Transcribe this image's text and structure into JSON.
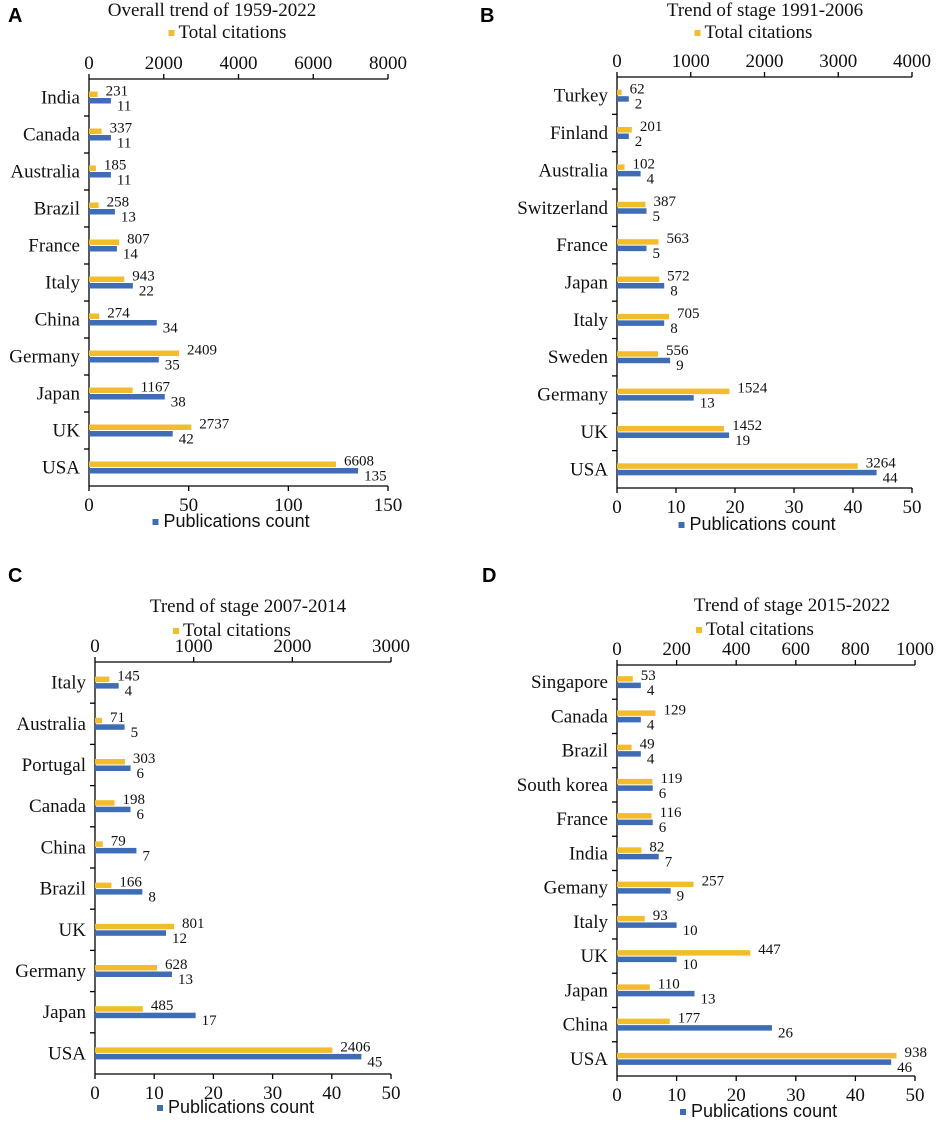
{
  "colors": {
    "citations": "#F2BC2D",
    "publications": "#3E6DB5"
  },
  "chart_data": [
    {
      "type": "bar",
      "panel": "A",
      "title": "Overall trend of 1959-2022",
      "orientation": "horizontal",
      "legend_top": "Total citations",
      "legend_bottom": "Publications count",
      "categories": [
        "India",
        "Canada",
        "Australia",
        "Brazil",
        "France",
        "Italy",
        "China",
        "Germany",
        "Japan",
        "UK",
        "USA"
      ],
      "top_axis": {
        "min": 0,
        "max": 8000,
        "ticks": [
          "0",
          "2000",
          "4000",
          "6000",
          "8000"
        ]
      },
      "bottom_axis": {
        "min": 0,
        "max": 150,
        "ticks": [
          "0",
          "50",
          "100",
          "150"
        ]
      },
      "series": [
        {
          "name": "Total citations",
          "axis": "top",
          "values": [
            231,
            337,
            185,
            258,
            807,
            943,
            274,
            2409,
            1167,
            2737,
            6608
          ]
        },
        {
          "name": "Publications count",
          "axis": "bottom",
          "values": [
            11,
            11,
            11,
            13,
            14,
            22,
            34,
            35,
            38,
            42,
            135
          ]
        }
      ]
    },
    {
      "type": "bar",
      "panel": "B",
      "title": "Trend of stage 1991-2006",
      "orientation": "horizontal",
      "legend_top": "Total citations",
      "legend_bottom": "Publications count",
      "categories": [
        "Turkey",
        "Finland",
        "Australia",
        "Switzerland",
        "France",
        "Japan",
        "Italy",
        "Sweden",
        "Germany",
        "UK",
        "USA"
      ],
      "top_axis": {
        "min": 0,
        "max": 4000,
        "ticks": [
          "0",
          "1000",
          "2000",
          "3000",
          "4000"
        ]
      },
      "bottom_axis": {
        "min": 0,
        "max": 50,
        "ticks": [
          "0",
          "10",
          "20",
          "30",
          "40",
          "50"
        ]
      },
      "series": [
        {
          "name": "Total citations",
          "axis": "top",
          "values": [
            62,
            201,
            102,
            387,
            563,
            572,
            705,
            556,
            1524,
            1452,
            3264
          ]
        },
        {
          "name": "Publications count",
          "axis": "bottom",
          "values": [
            2,
            2,
            4,
            5,
            5,
            8,
            8,
            9,
            13,
            19,
            44
          ]
        }
      ]
    },
    {
      "type": "bar",
      "panel": "C",
      "title": "Trend of stage 2007-2014",
      "orientation": "horizontal",
      "legend_top": "Total citations",
      "legend_bottom": "Publications count",
      "categories": [
        "Italy",
        "Australia",
        "Portugal",
        "Canada",
        "China",
        "Brazil",
        "UK",
        "Germany",
        "Japan",
        "USA"
      ],
      "top_axis": {
        "min": 0,
        "max": 3000,
        "ticks": [
          "0",
          "1000",
          "2000",
          "3000"
        ]
      },
      "bottom_axis": {
        "min": 0,
        "max": 50,
        "ticks": [
          "0",
          "10",
          "20",
          "30",
          "40",
          "50"
        ]
      },
      "series": [
        {
          "name": "Total citations",
          "axis": "top",
          "values": [
            145,
            71,
            303,
            198,
            79,
            166,
            801,
            628,
            485,
            2406
          ]
        },
        {
          "name": "Publications count",
          "axis": "bottom",
          "values": [
            4,
            5,
            6,
            6,
            7,
            8,
            12,
            13,
            17,
            45
          ]
        }
      ]
    },
    {
      "type": "bar",
      "panel": "D",
      "title": "Trend of stage 2015-2022",
      "orientation": "horizontal",
      "legend_top": "Total citations",
      "legend_bottom": "Publications count",
      "categories": [
        "Singapore",
        "Canada",
        "Brazil",
        "South korea",
        "France",
        "India",
        "Gemany",
        "Italy",
        "UK",
        "Japan",
        "China",
        "USA"
      ],
      "top_axis": {
        "min": 0,
        "max": 1000,
        "ticks": [
          "0",
          "200",
          "400",
          "600",
          "800",
          "1000"
        ]
      },
      "bottom_axis": {
        "min": 0,
        "max": 50,
        "ticks": [
          "0",
          "10",
          "20",
          "30",
          "40",
          "50"
        ]
      },
      "series": [
        {
          "name": "Total citations",
          "axis": "top",
          "values": [
            53,
            129,
            49,
            119,
            116,
            82,
            257,
            93,
            447,
            110,
            177,
            938
          ]
        },
        {
          "name": "Publications count",
          "axis": "bottom",
          "values": [
            4,
            4,
            4,
            6,
            6,
            7,
            9,
            10,
            10,
            13,
            26,
            46
          ]
        }
      ]
    }
  ]
}
